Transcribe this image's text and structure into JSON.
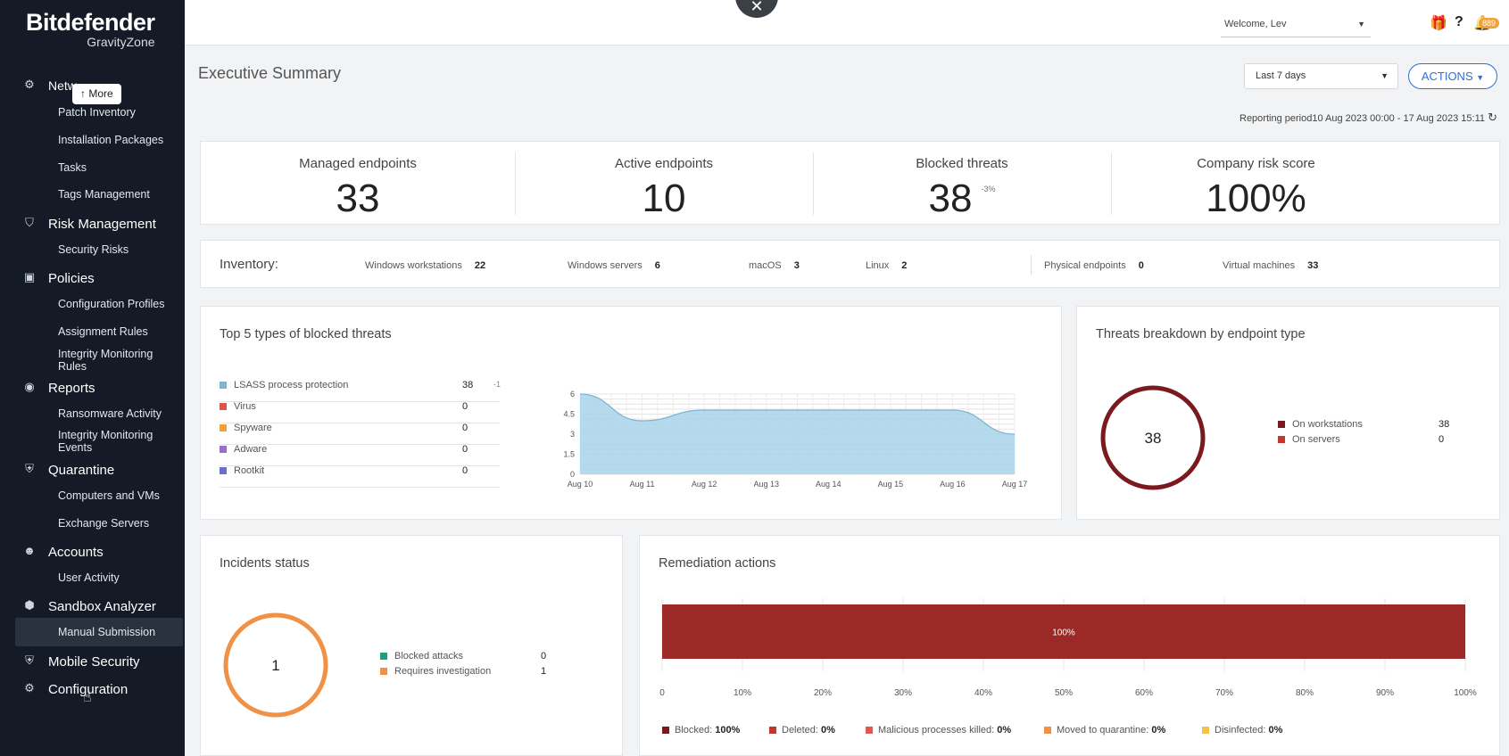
{
  "brand": {
    "name": "Bitdefender",
    "product": "GravityZone"
  },
  "sidebar": {
    "more_label": "↑ More",
    "partial_section": "Netw",
    "items": [
      {
        "type": "sub",
        "label": "Patch Inventory"
      },
      {
        "type": "sub",
        "label": "Installation Packages"
      },
      {
        "type": "sub",
        "label": "Tasks"
      },
      {
        "type": "sub",
        "label": "Tags Management"
      },
      {
        "type": "section",
        "label": "Risk Management",
        "icon": "risk-icon"
      },
      {
        "type": "sub",
        "label": "Security Risks"
      },
      {
        "type": "section",
        "label": "Policies",
        "icon": "policies-icon"
      },
      {
        "type": "sub",
        "label": "Configuration Profiles"
      },
      {
        "type": "sub",
        "label": "Assignment Rules"
      },
      {
        "type": "sub",
        "label": "Integrity Monitoring Rules"
      },
      {
        "type": "section",
        "label": "Reports",
        "icon": "reports-icon"
      },
      {
        "type": "sub",
        "label": "Ransomware Activity"
      },
      {
        "type": "sub",
        "label": "Integrity Monitoring Events"
      },
      {
        "type": "section",
        "label": "Quarantine",
        "icon": "quarantine-icon"
      },
      {
        "type": "sub",
        "label": "Computers and VMs"
      },
      {
        "type": "sub",
        "label": "Exchange Servers"
      },
      {
        "type": "section",
        "label": "Accounts",
        "icon": "accounts-icon"
      },
      {
        "type": "sub",
        "label": "User Activity"
      },
      {
        "type": "section",
        "label": "Sandbox Analyzer",
        "icon": "sandbox-icon"
      },
      {
        "type": "sub",
        "label": "Manual Submission",
        "selected": true
      },
      {
        "type": "section",
        "label": "Mobile Security",
        "icon": "mobile-icon"
      },
      {
        "type": "section",
        "label": "Configuration",
        "icon": "configuration-icon"
      }
    ]
  },
  "topbar": {
    "welcome": "Welcome, Lev",
    "notification_count": "889"
  },
  "page": {
    "title": "Executive Summary",
    "period": "Last 7 days",
    "actions_label": "ACTIONS",
    "reporting_period": "Reporting period10 Aug 2023 00:00 - 17 Aug 2023 15:11"
  },
  "kpis": [
    {
      "label": "Managed endpoints",
      "value": "33",
      "delta": ""
    },
    {
      "label": "Active endpoints",
      "value": "10",
      "delta": ""
    },
    {
      "label": "Blocked threats",
      "value": "38",
      "delta": "-3%"
    },
    {
      "label": "Company risk score",
      "value": "100%",
      "delta": ""
    }
  ],
  "inventory": {
    "title": "Inventory:",
    "items": [
      {
        "label": "Windows workstations",
        "value": "22"
      },
      {
        "label": "Windows servers",
        "value": "6"
      },
      {
        "label": "macOS",
        "value": "3"
      },
      {
        "label": "Linux",
        "value": "2"
      },
      {
        "label": "Physical endpoints",
        "value": "0"
      },
      {
        "label": "Virtual machines",
        "value": "33"
      }
    ]
  },
  "top_threats": {
    "title": "Top 5 types of blocked threats",
    "legend": [
      {
        "label": "LSASS process protection",
        "value": "38",
        "delta": "-1",
        "color": "#7bb6d6"
      },
      {
        "label": "Virus",
        "value": "0",
        "delta": "",
        "color": "#d9534f"
      },
      {
        "label": "Spyware",
        "value": "0",
        "delta": "",
        "color": "#f0a23a"
      },
      {
        "label": "Adware",
        "value": "0",
        "delta": "",
        "color": "#9b6fc9"
      },
      {
        "label": "Rootkit",
        "value": "0",
        "delta": "",
        "color": "#6a6fc9"
      }
    ]
  },
  "breakdown": {
    "title": "Threats breakdown by endpoint type",
    "total": "38",
    "legend": [
      {
        "label": "On workstations",
        "value": "38",
        "color": "#7a1a1f"
      },
      {
        "label": "On servers",
        "value": "0",
        "color": "#c0392b"
      }
    ]
  },
  "incidents": {
    "title": "Incidents status",
    "total": "1",
    "legend": [
      {
        "label": "Blocked attacks",
        "value": "0",
        "color": "#1aa07a"
      },
      {
        "label": "Requires investigation",
        "value": "1",
        "color": "#ef9146"
      }
    ]
  },
  "remediation": {
    "title": "Remediation actions",
    "legend": [
      {
        "label": "Blocked:",
        "value": "100%",
        "color": "#7a1a1f"
      },
      {
        "label": "Deleted:",
        "value": "0%",
        "color": "#c0392b"
      },
      {
        "label": "Malicious processes killed:",
        "value": "0%",
        "color": "#e0574f"
      },
      {
        "label": "Moved to quarantine:",
        "value": "0%",
        "color": "#ef9146"
      },
      {
        "label": "Disinfected:",
        "value": "0%",
        "color": "#f2c14e"
      }
    ]
  },
  "chart_data": [
    {
      "type": "area",
      "x": [
        "Aug 10",
        "Aug 11",
        "Aug 12",
        "Aug 13",
        "Aug 14",
        "Aug 15",
        "Aug 16",
        "Aug 17"
      ],
      "series": [
        {
          "values": [
            6,
            4,
            4.8,
            4.8,
            4.8,
            4.8,
            4.8,
            3
          ]
        }
      ],
      "ylim": [
        0,
        6
      ],
      "yticks": [
        "6",
        "4.5",
        "3",
        "1.5",
        "0"
      ],
      "grid": true,
      "color": "#a9d3ea"
    },
    {
      "type": "pie",
      "categories": [
        "On workstations",
        "On servers"
      ],
      "values": [
        38,
        0
      ],
      "center_label": "38"
    },
    {
      "type": "pie",
      "categories": [
        "Blocked attacks",
        "Requires investigation"
      ],
      "values": [
        0,
        1
      ],
      "center_label": "1"
    },
    {
      "type": "bar",
      "orientation": "horizontal",
      "stacked": true,
      "categories": [
        "Blocked",
        "Deleted",
        "Malicious processes killed",
        "Moved to quarantine",
        "Disinfected"
      ],
      "values": [
        100,
        0,
        0,
        0,
        0
      ],
      "bar_label": "100%",
      "xticks": [
        "0",
        "10%",
        "20%",
        "30%",
        "40%",
        "50%",
        "60%",
        "70%",
        "80%",
        "90%",
        "100%"
      ],
      "xlim": [
        0,
        100
      ],
      "grid": true
    }
  ]
}
